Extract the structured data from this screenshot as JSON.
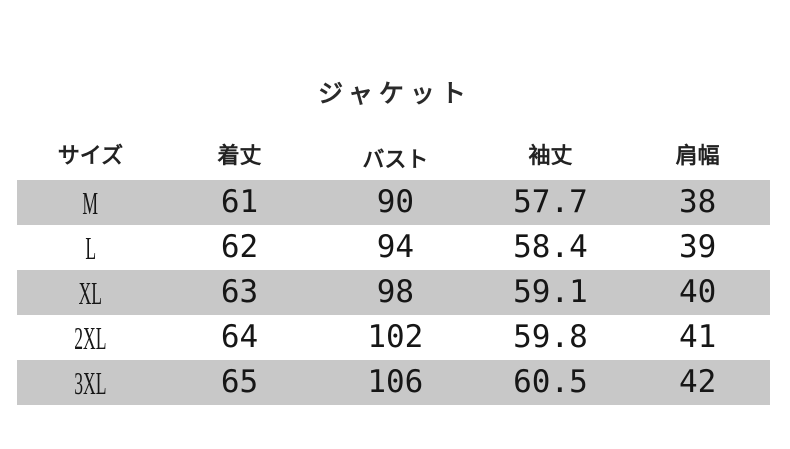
{
  "chart_data": {
    "type": "table",
    "title": "ジャケット",
    "columns": [
      "サイズ",
      "着丈",
      "バスト",
      "袖丈",
      "肩幅"
    ],
    "rows": [
      [
        "M",
        "61",
        "90",
        "57.7",
        "38"
      ],
      [
        "L",
        "62",
        "94",
        "58.4",
        "39"
      ],
      [
        "XL",
        "63",
        "98",
        "59.1",
        "40"
      ],
      [
        "2XL",
        "64",
        "102",
        "59.8",
        "41"
      ],
      [
        "3XL",
        "65",
        "106",
        "60.5",
        "42"
      ]
    ],
    "layout": "alternating shaded rows, first data row shaded, no cell borders"
  },
  "style": {
    "band_color": "#c8c8c8",
    "text_color": "#1c1c1c",
    "background_color": "#ffffff"
  }
}
